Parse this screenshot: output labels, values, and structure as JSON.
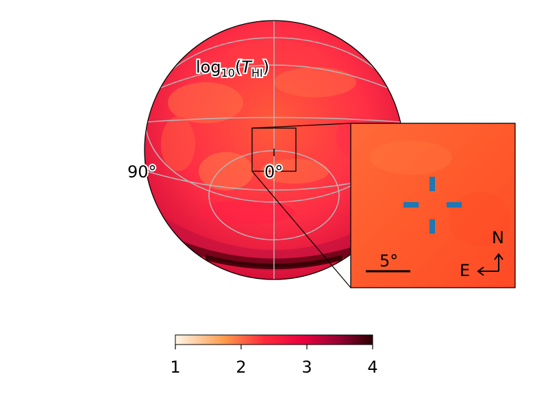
{
  "map": {
    "title_main": "log",
    "title_sub": "10",
    "title_var": "T",
    "title_var_sub": "HI",
    "lon_label_left": "90°",
    "lon_label_center": "0°"
  },
  "inset": {
    "scale_label": "5°",
    "north_label": "N",
    "east_label": "E",
    "marker_color": "#1f77b4"
  },
  "colorbar": {
    "ticks": [
      "1",
      "2",
      "3",
      "4"
    ],
    "range": [
      1,
      4
    ],
    "colormap": [
      "#fff5e6",
      "#ff8a3d",
      "#ff1a33",
      "#c4004f",
      "#3b0000"
    ]
  },
  "colors": {
    "sphere_base": "#ff2a45",
    "sphere_highlight": "#ff7043",
    "sphere_dark_band": "#5a0000",
    "graticule": "#b8b8b8",
    "inset_fill": "#ff5a2d",
    "outline": "#000000"
  }
}
